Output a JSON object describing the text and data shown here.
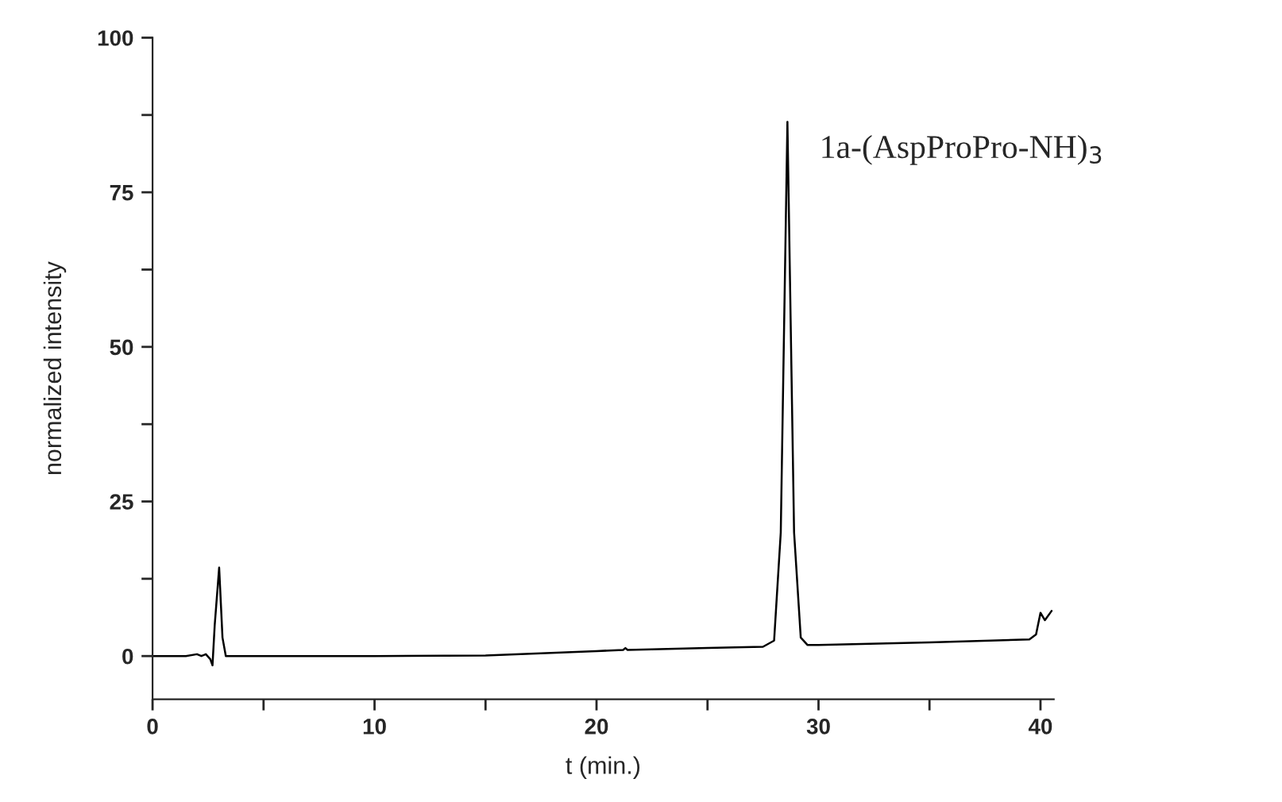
{
  "chart_data": {
    "type": "line",
    "xlabel": "t (min.)",
    "ylabel": "normalized intensity",
    "annotations": [
      "1a-(AspProPro-NH)$_{3}$"
    ],
    "xlim": [
      0,
      40.6
    ],
    "ylim": [
      -7,
      100
    ],
    "xticks": [
      0,
      {
        "value": 5,
        "label": null
      },
      10,
      {
        "value": 15,
        "label": null
      },
      20,
      {
        "value": 25,
        "label": null
      },
      30,
      {
        "value": 35,
        "label": null
      },
      40
    ],
    "yticks": [
      0,
      {
        "value": 12.5,
        "label": null
      },
      25,
      {
        "value": 37.5,
        "label": null
      },
      50,
      {
        "value": 62.5,
        "label": null
      },
      75,
      {
        "value": 87.5,
        "label": null
      },
      100
    ],
    "grid": false,
    "marker": "none",
    "line_style": "solid",
    "series": [
      {
        "color": "#000000",
        "x": [
          0,
          1.5,
          2.0,
          2.2,
          2.4,
          2.6,
          2.7,
          2.8,
          3.0,
          3.15,
          3.3,
          5,
          10,
          15,
          20,
          21.2,
          21.3,
          21.4,
          25,
          27.5,
          28.0,
          28.3,
          28.6,
          28.9,
          29.2,
          29.5,
          30,
          35,
          39.5,
          39.8,
          40.0,
          40.2,
          40.5
        ],
        "values": [
          0,
          0,
          0.3,
          0,
          0.3,
          -0.5,
          -1.5,
          5,
          14.3,
          3,
          0,
          0,
          0,
          0.1,
          0.8,
          1.0,
          1.3,
          1.0,
          1.3,
          1.5,
          2.5,
          20,
          86.4,
          20,
          3,
          1.8,
          1.8,
          2.2,
          2.7,
          3.5,
          7.0,
          5.8,
          7.3
        ]
      }
    ]
  }
}
